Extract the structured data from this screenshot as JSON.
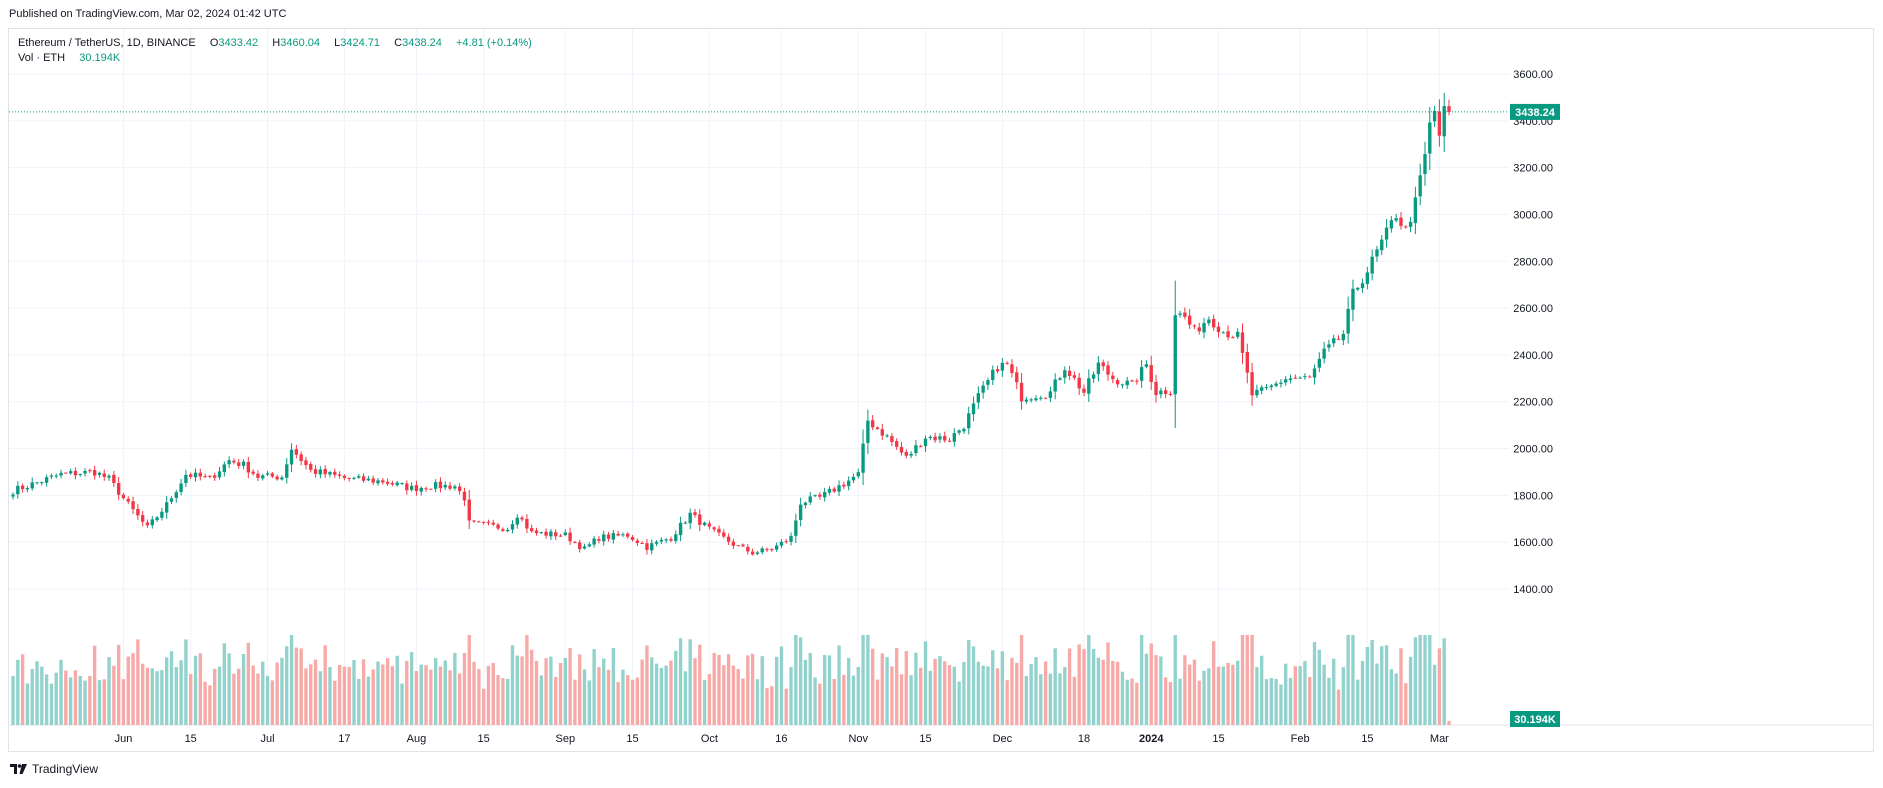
{
  "published": "Published on TradingView.com, Mar 02, 2024 01:42 UTC",
  "legend": {
    "symbol": "Ethereum / TetherUS, 1D, BINANCE",
    "o_label": "O",
    "o": "3433.42",
    "h_label": "H",
    "h": "3460.04",
    "l_label": "L",
    "l": "3424.71",
    "c_label": "C",
    "c": "3438.24",
    "change": "+4.81 (+0.14%)",
    "vol_label": "Vol · ETH",
    "vol": "30.194K"
  },
  "footer": {
    "brand": "TradingView",
    "logo_icon": "tradingview-logo-icon"
  },
  "colors": {
    "up": "#089981",
    "down": "#f23645",
    "vol_up": "#92d2cc",
    "vol_down": "#f7a9a7",
    "grid": "#f0f3fa"
  },
  "chart_data": {
    "type": "candlestick",
    "symbol": "ETHUSDT",
    "interval": "1D",
    "ylim": [
      1350,
      3700
    ],
    "price_ticks": [
      1400,
      1600,
      1800,
      2000,
      2200,
      2400,
      2600,
      2800,
      3000,
      3200,
      3400,
      3600
    ],
    "price_tick_labels": [
      "1400.00",
      "1600.00",
      "1800.00",
      "2000.00",
      "2200.00",
      "2400.00",
      "2600.00",
      "2800.00",
      "3000.00",
      "3200.00",
      "3400.00",
      "3600.00"
    ],
    "last_price_label": "3438.24",
    "last_volume_label": "30.194K",
    "x_ticks": [
      {
        "day": 23,
        "label": "Jun"
      },
      {
        "day": 37,
        "label": "15"
      },
      {
        "day": 53,
        "label": "Jul"
      },
      {
        "day": 69,
        "label": "17"
      },
      {
        "day": 84,
        "label": "Aug"
      },
      {
        "day": 98,
        "label": "15"
      },
      {
        "day": 115,
        "label": "Sep"
      },
      {
        "day": 129,
        "label": "15"
      },
      {
        "day": 145,
        "label": "Oct"
      },
      {
        "day": 160,
        "label": "16"
      },
      {
        "day": 176,
        "label": "Nov"
      },
      {
        "day": 190,
        "label": "15"
      },
      {
        "day": 206,
        "label": "Dec"
      },
      {
        "day": 223,
        "label": "18"
      },
      {
        "day": 237,
        "label": "2024"
      },
      {
        "day": 251,
        "label": "15"
      },
      {
        "day": 268,
        "label": "Feb"
      },
      {
        "day": 282,
        "label": "15"
      },
      {
        "day": 297,
        "label": "Mar"
      }
    ],
    "anchors": [
      {
        "day": 0,
        "price": 1820
      },
      {
        "day": 10,
        "price": 1890
      },
      {
        "day": 17,
        "price": 1900
      },
      {
        "day": 20,
        "price": 1870
      },
      {
        "day": 24,
        "price": 1760
      },
      {
        "day": 28,
        "price": 1660
      },
      {
        "day": 32,
        "price": 1760
      },
      {
        "day": 36,
        "price": 1890
      },
      {
        "day": 41,
        "price": 1870
      },
      {
        "day": 45,
        "price": 1950
      },
      {
        "day": 48,
        "price": 1930
      },
      {
        "day": 51,
        "price": 1880
      },
      {
        "day": 56,
        "price": 1880
      },
      {
        "day": 58,
        "price": 2000
      },
      {
        "day": 62,
        "price": 1905
      },
      {
        "day": 70,
        "price": 1870
      },
      {
        "day": 77,
        "price": 1860
      },
      {
        "day": 83,
        "price": 1830
      },
      {
        "day": 87,
        "price": 1840
      },
      {
        "day": 92,
        "price": 1840
      },
      {
        "day": 94,
        "price": 1790
      },
      {
        "day": 95,
        "price": 1680
      },
      {
        "day": 103,
        "price": 1660
      },
      {
        "day": 105,
        "price": 1720
      },
      {
        "day": 108,
        "price": 1640
      },
      {
        "day": 115,
        "price": 1630
      },
      {
        "day": 119,
        "price": 1570
      },
      {
        "day": 122,
        "price": 1620
      },
      {
        "day": 128,
        "price": 1630
      },
      {
        "day": 132,
        "price": 1580
      },
      {
        "day": 137,
        "price": 1620
      },
      {
        "day": 141,
        "price": 1720
      },
      {
        "day": 146,
        "price": 1640
      },
      {
        "day": 151,
        "price": 1580
      },
      {
        "day": 154,
        "price": 1555
      },
      {
        "day": 158,
        "price": 1570
      },
      {
        "day": 162,
        "price": 1620
      },
      {
        "day": 164,
        "price": 1770
      },
      {
        "day": 168,
        "price": 1790
      },
      {
        "day": 173,
        "price": 1850
      },
      {
        "day": 176,
        "price": 1890
      },
      {
        "day": 178,
        "price": 2120
      },
      {
        "day": 182,
        "price": 2050
      },
      {
        "day": 186,
        "price": 1960
      },
      {
        "day": 190,
        "price": 2050
      },
      {
        "day": 195,
        "price": 2040
      },
      {
        "day": 198,
        "price": 2100
      },
      {
        "day": 201,
        "price": 2220
      },
      {
        "day": 205,
        "price": 2350
      },
      {
        "day": 207,
        "price": 2360
      },
      {
        "day": 210,
        "price": 2220
      },
      {
        "day": 216,
        "price": 2240
      },
      {
        "day": 219,
        "price": 2350
      },
      {
        "day": 223,
        "price": 2240
      },
      {
        "day": 226,
        "price": 2360
      },
      {
        "day": 229,
        "price": 2300
      },
      {
        "day": 233,
        "price": 2270
      },
      {
        "day": 236,
        "price": 2360
      },
      {
        "day": 238,
        "price": 2240
      },
      {
        "day": 241,
        "price": 2250
      },
      {
        "day": 242,
        "price": 2580
      },
      {
        "day": 244,
        "price": 2560
      },
      {
        "day": 246,
        "price": 2500
      },
      {
        "day": 249,
        "price": 2560
      },
      {
        "day": 252,
        "price": 2500
      },
      {
        "day": 255,
        "price": 2480
      },
      {
        "day": 258,
        "price": 2230
      },
      {
        "day": 261,
        "price": 2250
      },
      {
        "day": 265,
        "price": 2300
      },
      {
        "day": 270,
        "price": 2300
      },
      {
        "day": 273,
        "price": 2410
      },
      {
        "day": 277,
        "price": 2490
      },
      {
        "day": 279,
        "price": 2660
      },
      {
        "day": 282,
        "price": 2760
      },
      {
        "day": 285,
        "price": 2880
      },
      {
        "day": 288,
        "price": 3000
      },
      {
        "day": 290,
        "price": 2930
      },
      {
        "day": 292,
        "price": 3050
      },
      {
        "day": 294,
        "price": 3250
      },
      {
        "day": 295,
        "price": 3380
      },
      {
        "day": 296,
        "price": 3440
      },
      {
        "day": 297,
        "price": 3340
      },
      {
        "day": 298,
        "price": 3440
      },
      {
        "day": 299,
        "price": 3438
      }
    ]
  }
}
